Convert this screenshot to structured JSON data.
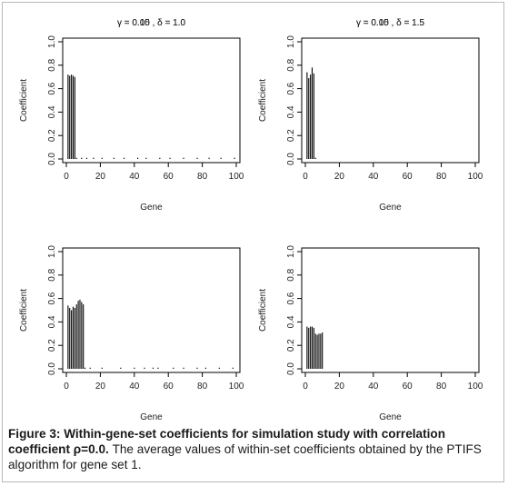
{
  "caption": {
    "label": "Figure 3:",
    "bold_text": "Within-gene-set coefficients for simulation study with correlation coefficient ρ=0.0.",
    "text": "The average values of within-set coefficients obtained by the PTIFS algorithm for gene set 1."
  },
  "colors": {
    "line": "#000000",
    "frame": "#b9b9b9"
  },
  "chart_data": [
    {
      "type": "bar",
      "title": "γ = 0.05 , δ = 1.0",
      "xlabel": "Gene",
      "ylabel": "Coefficient",
      "xlim": [
        1,
        100
      ],
      "ylim": [
        0,
        1.0
      ],
      "xticks": [
        0,
        20,
        40,
        60,
        80,
        100
      ],
      "yticks": [
        0.0,
        0.2,
        0.4,
        0.6,
        0.8,
        1.0
      ],
      "values": [
        0.72,
        0.71,
        0.72,
        0.71,
        0.7,
        0.01,
        0.0,
        0.0,
        0.01,
        0.0,
        0.0,
        0.01,
        0.0,
        0.0,
        0.0,
        0.01,
        0.0,
        0.0,
        0.0,
        0.0,
        0.01,
        0.0,
        0.0,
        0.0,
        0.0,
        0.0,
        0.0,
        0.01,
        0.0,
        0.0,
        0.0,
        0.0,
        0.0,
        0.01,
        0.0,
        0.0,
        0.0,
        0.0,
        0.0,
        0.0,
        0.0,
        0.01,
        0.0,
        0.0,
        0.0,
        0.0,
        0.01,
        0.0,
        0.0,
        0.0,
        0.0,
        0.0,
        0.0,
        0.0,
        0.01,
        0.0,
        0.0,
        0.0,
        0.0,
        0.0,
        0.01,
        0.0,
        0.0,
        0.0,
        0.0,
        0.0,
        0.0,
        0.0,
        0.01,
        0.0,
        0.0,
        0.0,
        0.0,
        0.0,
        0.0,
        0.0,
        0.01,
        0.0,
        0.0,
        0.0,
        0.0,
        0.0,
        0.0,
        0.01,
        0.0,
        0.0,
        0.0,
        0.0,
        0.0,
        0.0,
        0.01,
        0.0,
        0.0,
        0.0,
        0.0,
        0.0,
        0.0,
        0.0,
        0.01,
        0.0
      ]
    },
    {
      "type": "bar",
      "title": "γ = 0.05 , δ = 1.5",
      "xlabel": "Gene",
      "ylabel": "Coefficient",
      "xlim": [
        1,
        100
      ],
      "ylim": [
        0,
        1.0
      ],
      "xticks": [
        0,
        20,
        40,
        60,
        80,
        100
      ],
      "yticks": [
        0.0,
        0.2,
        0.4,
        0.6,
        0.8,
        1.0
      ],
      "values": [
        0.74,
        0.69,
        0.72,
        0.78,
        0.73,
        0.01,
        0.0,
        0.0,
        0.0,
        0.0,
        0.0,
        0.0,
        0.0,
        0.0,
        0.0,
        0.0,
        0.0,
        0.0,
        0.0,
        0.0,
        0.0,
        0.0,
        0.0,
        0.0,
        0.0,
        0.0,
        0.0,
        0.0,
        0.0,
        0.0,
        0.0,
        0.0,
        0.0,
        0.0,
        0.0,
        0.0,
        0.0,
        0.0,
        0.0,
        0.0,
        0.0,
        0.0,
        0.0,
        0.0,
        0.0,
        0.0,
        0.0,
        0.0,
        0.0,
        0.0,
        0.0,
        0.0,
        0.0,
        0.0,
        0.0,
        0.0,
        0.0,
        0.0,
        0.0,
        0.0,
        0.0,
        0.0,
        0.0,
        0.0,
        0.0,
        0.0,
        0.0,
        0.0,
        0.0,
        0.0,
        0.0,
        0.0,
        0.0,
        0.0,
        0.0,
        0.0,
        0.0,
        0.0,
        0.0,
        0.0,
        0.0,
        0.0,
        0.0,
        0.0,
        0.0,
        0.0,
        0.0,
        0.0,
        0.0,
        0.0,
        0.0,
        0.0,
        0.0,
        0.0,
        0.0,
        0.0,
        0.0,
        0.0,
        0.0,
        0.0
      ]
    },
    {
      "type": "bar",
      "title": "γ = 0.10 , δ = 1.0",
      "xlabel": "Gene",
      "ylabel": "Coefficient",
      "xlim": [
        1,
        100
      ],
      "ylim": [
        0,
        1.0
      ],
      "xticks": [
        0,
        20,
        40,
        60,
        80,
        100
      ],
      "yticks": [
        0.0,
        0.2,
        0.4,
        0.6,
        0.8,
        1.0
      ],
      "values": [
        0.54,
        0.52,
        0.5,
        0.53,
        0.52,
        0.55,
        0.58,
        0.59,
        0.57,
        0.55,
        0.01,
        0.0,
        0.0,
        0.01,
        0.0,
        0.0,
        0.0,
        0.0,
        0.0,
        0.0,
        0.01,
        0.0,
        0.0,
        0.0,
        0.0,
        0.0,
        0.0,
        0.0,
        0.0,
        0.0,
        0.0,
        0.01,
        0.0,
        0.0,
        0.0,
        0.0,
        0.0,
        0.0,
        0.0,
        0.01,
        0.0,
        0.0,
        0.0,
        0.0,
        0.0,
        0.01,
        0.0,
        0.0,
        0.0,
        0.0,
        0.01,
        0.0,
        0.0,
        0.01,
        0.0,
        0.0,
        0.0,
        0.0,
        0.0,
        0.0,
        0.0,
        0.0,
        0.01,
        0.0,
        0.0,
        0.0,
        0.0,
        0.0,
        0.01,
        0.0,
        0.0,
        0.0,
        0.0,
        0.0,
        0.0,
        0.0,
        0.01,
        0.0,
        0.0,
        0.0,
        0.0,
        0.01,
        0.0,
        0.0,
        0.0,
        0.0,
        0.0,
        0.0,
        0.0,
        0.01,
        0.0,
        0.0,
        0.0,
        0.0,
        0.0,
        0.0,
        0.0,
        0.01,
        0.0,
        0.0
      ]
    },
    {
      "type": "bar",
      "title": "γ = 0.10 , δ = 1.5",
      "xlabel": "Gene",
      "ylabel": "Coefficient",
      "xlim": [
        1,
        100
      ],
      "ylim": [
        0,
        1.0
      ],
      "xticks": [
        0,
        20,
        40,
        60,
        80,
        100
      ],
      "yticks": [
        0.0,
        0.2,
        0.4,
        0.6,
        0.8,
        1.0
      ],
      "values": [
        0.36,
        0.35,
        0.36,
        0.36,
        0.35,
        0.3,
        0.29,
        0.3,
        0.3,
        0.31,
        0.0,
        0.0,
        0.0,
        0.0,
        0.0,
        0.0,
        0.0,
        0.0,
        0.0,
        0.0,
        0.0,
        0.0,
        0.0,
        0.0,
        0.0,
        0.0,
        0.0,
        0.0,
        0.0,
        0.0,
        0.0,
        0.0,
        0.0,
        0.0,
        0.0,
        0.0,
        0.0,
        0.0,
        0.0,
        0.0,
        0.0,
        0.0,
        0.0,
        0.0,
        0.0,
        0.0,
        0.0,
        0.0,
        0.0,
        0.0,
        0.0,
        0.0,
        0.0,
        0.0,
        0.0,
        0.0,
        0.0,
        0.0,
        0.0,
        0.0,
        0.0,
        0.0,
        0.0,
        0.0,
        0.0,
        0.0,
        0.0,
        0.0,
        0.0,
        0.0,
        0.0,
        0.0,
        0.0,
        0.0,
        0.0,
        0.0,
        0.0,
        0.0,
        0.0,
        0.0,
        0.0,
        0.0,
        0.0,
        0.0,
        0.0,
        0.0,
        0.0,
        0.0,
        0.0,
        0.0,
        0.0,
        0.0,
        0.0,
        0.0,
        0.0,
        0.0,
        0.0,
        0.0,
        0.0,
        0.0
      ]
    }
  ]
}
